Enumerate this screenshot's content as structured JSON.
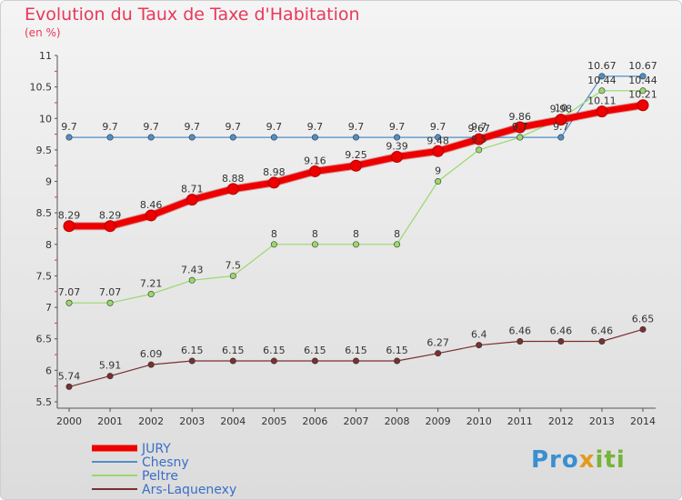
{
  "header": {
    "title": "Evolution du Taux de Taxe d'Habitation",
    "unit": "(en %)"
  },
  "logo": {
    "text": "Proxiti"
  },
  "chart_data": {
    "type": "line",
    "title": "Evolution du Taux de Taxe d'Habitation",
    "ylabel": "(en %)",
    "x": [
      "2000",
      "2001",
      "2002",
      "2003",
      "2004",
      "2005",
      "2006",
      "2007",
      "2008",
      "2009",
      "2010",
      "2011",
      "2012",
      "2013",
      "2014"
    ],
    "ylim": [
      5.5,
      11
    ],
    "yticks": [
      "5.5",
      "6",
      "6.5",
      "7",
      "7.5",
      "8",
      "8.5",
      "9",
      "9.5",
      "10",
      "10.5",
      "11"
    ],
    "grid": false,
    "legend_position": "bottom-left",
    "series": [
      {
        "name": "JURY",
        "color": "#ee0000",
        "style": "thick",
        "values": [
          8.29,
          8.29,
          8.46,
          8.71,
          8.88,
          8.98,
          9.16,
          9.25,
          9.39,
          9.48,
          9.67,
          9.86,
          9.98,
          10.11,
          10.21
        ],
        "labels": [
          "8.29",
          "8.29",
          "8.46",
          "8.71",
          "8.88",
          "8.98",
          "9.16",
          "9.25",
          "9.39",
          "9.48",
          "9.67",
          "9.86",
          "9.98",
          "10.11",
          "10.21"
        ]
      },
      {
        "name": "Chesny",
        "color": "#4f8fc8",
        "style": "thin",
        "values": [
          9.7,
          9.7,
          9.7,
          9.7,
          9.7,
          9.7,
          9.7,
          9.7,
          9.7,
          9.7,
          9.7,
          9.7,
          9.7,
          10.67,
          10.67
        ],
        "labels": [
          "9.7",
          "9.7",
          "9.7",
          "9.7",
          "9.7",
          "9.7",
          "9.7",
          "9.7",
          "9.7",
          "9.7",
          "9.7",
          "9.7",
          "9.7",
          "10.67",
          "10.67"
        ]
      },
      {
        "name": "Peltre",
        "color": "#99d96a",
        "style": "thin",
        "values": [
          7.07,
          7.07,
          7.21,
          7.43,
          7.5,
          8,
          8,
          8,
          8,
          9,
          9.5,
          9.7,
          10,
          10.44,
          10.44
        ],
        "labels": [
          "7.07",
          "7.07",
          "7.21",
          "7.43",
          "7.5",
          "8",
          "8",
          "8",
          "8",
          "9",
          "9.5",
          "9.7",
          "10",
          "10.44",
          "10.44"
        ]
      },
      {
        "name": "Ars-Laquenexy",
        "color": "#7b2f30",
        "style": "thin",
        "values": [
          5.74,
          5.91,
          6.09,
          6.15,
          6.15,
          6.15,
          6.15,
          6.15,
          6.15,
          6.27,
          6.4,
          6.46,
          6.46,
          6.46,
          6.65
        ],
        "labels": [
          "5.74",
          "5.91",
          "6.09",
          "6.15",
          "6.15",
          "6.15",
          "6.15",
          "6.15",
          "6.15",
          "6.27",
          "6.4",
          "6.46",
          "6.46",
          "6.46",
          "6.65"
        ]
      }
    ]
  }
}
